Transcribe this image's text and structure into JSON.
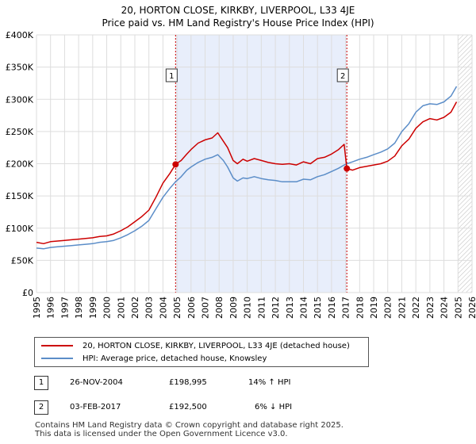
{
  "chart_data": {
    "type": "line",
    "title": "20, HORTON CLOSE, KIRKBY, LIVERPOOL, L33 4JE",
    "subtitle": "Price paid vs. HM Land Registry's House Price Index (HPI)",
    "xlim": [
      1995,
      2026
    ],
    "ylim": [
      0,
      400000
    ],
    "x_ticks": [
      "1995",
      "1996",
      "1997",
      "1998",
      "1999",
      "2000",
      "2001",
      "2002",
      "2003",
      "2004",
      "2005",
      "2006",
      "2007",
      "2008",
      "2009",
      "2010",
      "2011",
      "2012",
      "2013",
      "2014",
      "2015",
      "2016",
      "2017",
      "2018",
      "2019",
      "2020",
      "2021",
      "2022",
      "2023",
      "2024",
      "2025",
      "2026"
    ],
    "y_ticks": [
      {
        "value": 0,
        "label": "£0"
      },
      {
        "value": 50000,
        "label": "£50K"
      },
      {
        "value": 100000,
        "label": "£100K"
      },
      {
        "value": 150000,
        "label": "£150K"
      },
      {
        "value": 200000,
        "label": "£200K"
      },
      {
        "value": 250000,
        "label": "£250K"
      },
      {
        "value": 300000,
        "label": "£300K"
      },
      {
        "value": 350000,
        "label": "£350K"
      },
      {
        "value": 400000,
        "label": "£400K"
      }
    ],
    "shaded_period": [
      2004.9,
      2017.09
    ],
    "future_hatch_start": 2025.0,
    "series": [
      {
        "name": "20, HORTON CLOSE, KIRKBY, LIVERPOOL, L33 4JE (detached house)",
        "color": "#cc0000",
        "points": [
          [
            1995.0,
            78000
          ],
          [
            1995.5,
            76000
          ],
          [
            1996.0,
            79000
          ],
          [
            1996.5,
            80000
          ],
          [
            1997.0,
            81000
          ],
          [
            1997.5,
            82000
          ],
          [
            1998.0,
            83000
          ],
          [
            1998.5,
            84000
          ],
          [
            1999.0,
            85000
          ],
          [
            1999.5,
            87000
          ],
          [
            2000.0,
            88000
          ],
          [
            2000.5,
            91000
          ],
          [
            2001.0,
            96000
          ],
          [
            2001.5,
            102000
          ],
          [
            2002.0,
            110000
          ],
          [
            2002.5,
            118000
          ],
          [
            2003.0,
            128000
          ],
          [
            2003.5,
            148000
          ],
          [
            2004.0,
            170000
          ],
          [
            2004.5,
            185000
          ],
          [
            2004.9,
            198995
          ],
          [
            2005.3,
            205000
          ],
          [
            2005.7,
            215000
          ],
          [
            2006.0,
            222000
          ],
          [
            2006.5,
            232000
          ],
          [
            2007.0,
            237000
          ],
          [
            2007.5,
            240000
          ],
          [
            2007.9,
            248000
          ],
          [
            2008.3,
            235000
          ],
          [
            2008.6,
            225000
          ],
          [
            2009.0,
            205000
          ],
          [
            2009.3,
            200000
          ],
          [
            2009.7,
            207000
          ],
          [
            2010.0,
            204000
          ],
          [
            2010.5,
            208000
          ],
          [
            2011.0,
            205000
          ],
          [
            2011.5,
            202000
          ],
          [
            2012.0,
            200000
          ],
          [
            2012.5,
            199000
          ],
          [
            2013.0,
            200000
          ],
          [
            2013.5,
            198000
          ],
          [
            2014.0,
            203000
          ],
          [
            2014.5,
            200000
          ],
          [
            2015.0,
            208000
          ],
          [
            2015.5,
            210000
          ],
          [
            2016.0,
            215000
          ],
          [
            2016.5,
            222000
          ],
          [
            2016.9,
            230000
          ],
          [
            2017.09,
            192500
          ],
          [
            2017.5,
            190000
          ],
          [
            2018.0,
            194000
          ],
          [
            2018.5,
            196000
          ],
          [
            2019.0,
            198000
          ],
          [
            2019.5,
            200000
          ],
          [
            2020.0,
            204000
          ],
          [
            2020.5,
            212000
          ],
          [
            2021.0,
            228000
          ],
          [
            2021.5,
            238000
          ],
          [
            2022.0,
            255000
          ],
          [
            2022.5,
            265000
          ],
          [
            2023.0,
            270000
          ],
          [
            2023.5,
            268000
          ],
          [
            2024.0,
            272000
          ],
          [
            2024.5,
            280000
          ],
          [
            2024.9,
            296000
          ]
        ]
      },
      {
        "name": "HPI: Average price, detached house, Knowsley",
        "color": "#5b8dc8",
        "points": [
          [
            1995.0,
            69000
          ],
          [
            1995.5,
            68000
          ],
          [
            1996.0,
            70000
          ],
          [
            1996.5,
            71000
          ],
          [
            1997.0,
            72000
          ],
          [
            1997.5,
            73000
          ],
          [
            1998.0,
            74000
          ],
          [
            1998.5,
            75000
          ],
          [
            1999.0,
            76000
          ],
          [
            1999.5,
            78000
          ],
          [
            2000.0,
            79000
          ],
          [
            2000.5,
            81000
          ],
          [
            2001.0,
            85000
          ],
          [
            2001.5,
            90000
          ],
          [
            2002.0,
            96000
          ],
          [
            2002.5,
            103000
          ],
          [
            2003.0,
            112000
          ],
          [
            2003.5,
            130000
          ],
          [
            2004.0,
            148000
          ],
          [
            2004.5,
            162000
          ],
          [
            2004.9,
            172000
          ],
          [
            2005.3,
            180000
          ],
          [
            2005.7,
            190000
          ],
          [
            2006.0,
            195000
          ],
          [
            2006.5,
            202000
          ],
          [
            2007.0,
            207000
          ],
          [
            2007.5,
            210000
          ],
          [
            2007.9,
            214000
          ],
          [
            2008.3,
            205000
          ],
          [
            2008.6,
            195000
          ],
          [
            2009.0,
            178000
          ],
          [
            2009.3,
            173000
          ],
          [
            2009.7,
            178000
          ],
          [
            2010.0,
            177000
          ],
          [
            2010.5,
            180000
          ],
          [
            2011.0,
            177000
          ],
          [
            2011.5,
            175000
          ],
          [
            2012.0,
            174000
          ],
          [
            2012.5,
            172000
          ],
          [
            2013.0,
            172000
          ],
          [
            2013.5,
            172000
          ],
          [
            2014.0,
            176000
          ],
          [
            2014.5,
            175000
          ],
          [
            2015.0,
            180000
          ],
          [
            2015.5,
            183000
          ],
          [
            2016.0,
            188000
          ],
          [
            2016.5,
            193000
          ],
          [
            2016.9,
            198000
          ],
          [
            2017.09,
            200000
          ],
          [
            2017.5,
            203000
          ],
          [
            2018.0,
            207000
          ],
          [
            2018.5,
            210000
          ],
          [
            2019.0,
            214000
          ],
          [
            2019.5,
            218000
          ],
          [
            2020.0,
            223000
          ],
          [
            2020.5,
            232000
          ],
          [
            2021.0,
            250000
          ],
          [
            2021.5,
            262000
          ],
          [
            2022.0,
            280000
          ],
          [
            2022.5,
            290000
          ],
          [
            2023.0,
            293000
          ],
          [
            2023.5,
            292000
          ],
          [
            2024.0,
            296000
          ],
          [
            2024.5,
            305000
          ],
          [
            2024.9,
            320000
          ]
        ]
      }
    ],
    "markers": [
      {
        "label": "1",
        "x": 2004.9,
        "y": 198995
      },
      {
        "label": "2",
        "x": 2017.09,
        "y": 192500
      }
    ]
  },
  "legend": {
    "property_label": "20, HORTON CLOSE, KIRKBY, LIVERPOOL, L33 4JE (detached house)",
    "hpi_label": "HPI: Average price, detached house, Knowsley"
  },
  "transactions": [
    {
      "badge": "1",
      "date": "26-NOV-2004",
      "price": "£198,995",
      "change": "14% ↑ HPI"
    },
    {
      "badge": "2",
      "date": "03-FEB-2017",
      "price": "£192,500",
      "change": "6% ↓ HPI"
    }
  ],
  "footer": {
    "line1": "Contains HM Land Registry data © Crown copyright and database right 2025.",
    "line2": "This data is licensed under the Open Government Licence v3.0."
  }
}
